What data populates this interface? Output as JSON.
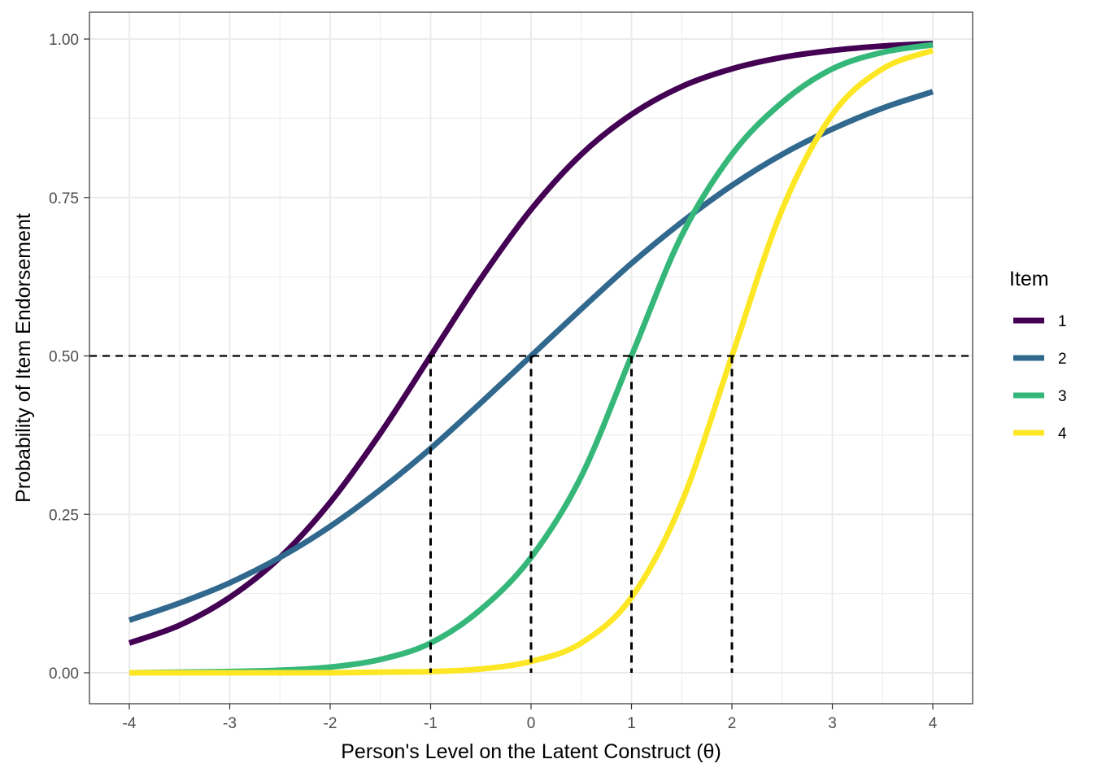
{
  "chart_data": {
    "type": "line",
    "title": "",
    "xlabel": "Person's Level on the Latent Construct (θ)",
    "ylabel": "Probability of Item Endorsement",
    "xlim": [
      -4,
      4
    ],
    "ylim": [
      0,
      1
    ],
    "x_ticks": [
      -4,
      -3,
      -2,
      -1,
      0,
      1,
      2,
      3,
      4
    ],
    "x_tick_labels": [
      "-4",
      "-3",
      "-2",
      "-1",
      "0",
      "1",
      "2",
      "3",
      "4"
    ],
    "y_ticks": [
      0,
      0.25,
      0.5,
      0.75,
      1
    ],
    "y_tick_labels": [
      "0.00",
      "0.25",
      "0.50",
      "0.75",
      "1.00"
    ],
    "grid": true,
    "legend": {
      "title": "Item",
      "position": "right"
    },
    "reference_lines": {
      "horizontal_y": 0.5,
      "vertical_x": [
        -1,
        0,
        1,
        2
      ]
    },
    "x": [
      -4,
      -3.5,
      -3,
      -2.5,
      -2,
      -1.5,
      -1,
      -0.5,
      0,
      0.5,
      1,
      1.5,
      2,
      2.5,
      3,
      3.5,
      4
    ],
    "series": [
      {
        "name": "1",
        "color": "#440154",
        "values": [
          0.047,
          0.075,
          0.119,
          0.182,
          0.269,
          0.378,
          0.5,
          0.622,
          0.731,
          0.818,
          0.881,
          0.925,
          0.953,
          0.971,
          0.982,
          0.989,
          0.993
        ]
      },
      {
        "name": "2",
        "color": "#31688e",
        "values": [
          0.083,
          0.11,
          0.142,
          0.182,
          0.231,
          0.289,
          0.354,
          0.426,
          0.5,
          0.574,
          0.646,
          0.711,
          0.769,
          0.818,
          0.858,
          0.891,
          0.917
        ]
      },
      {
        "name": "3",
        "color": "#35b779",
        "values": [
          0.0,
          0.001,
          0.002,
          0.004,
          0.009,
          0.021,
          0.047,
          0.1,
          0.182,
          0.31,
          0.5,
          0.69,
          0.818,
          0.9,
          0.953,
          0.979,
          0.991
        ]
      },
      {
        "name": "4",
        "color": "#fde725",
        "values": [
          0.0,
          0.0,
          0.0,
          0.0,
          0.0,
          0.001,
          0.002,
          0.006,
          0.018,
          0.047,
          0.119,
          0.269,
          0.5,
          0.731,
          0.881,
          0.953,
          0.982
        ]
      }
    ]
  }
}
